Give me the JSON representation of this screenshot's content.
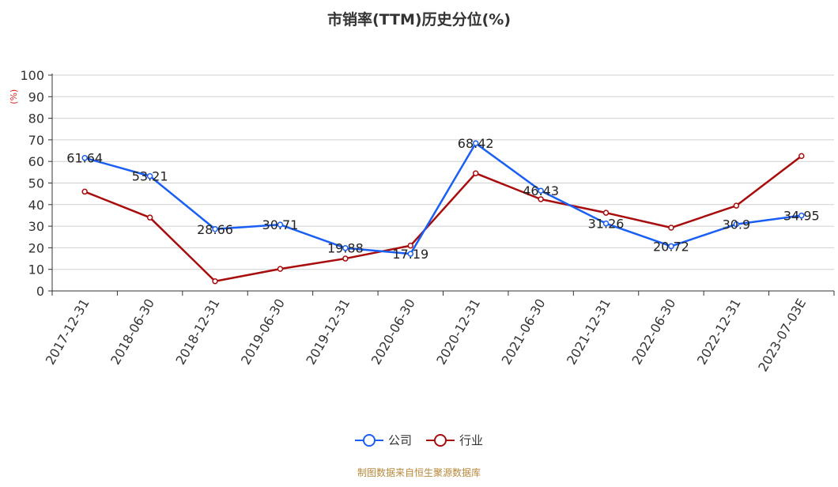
{
  "chart_data": {
    "type": "line",
    "title": "市销率(TTM)历史分位(%)",
    "ylabel": "(%)",
    "xlabel": "",
    "ylim": [
      0,
      100
    ],
    "yticks": [
      0,
      10,
      20,
      30,
      40,
      50,
      60,
      70,
      80,
      90,
      100
    ],
    "categories": [
      "2017-12-31",
      "2018-06-30",
      "2018-12-31",
      "2019-06-30",
      "2019-12-31",
      "2020-06-30",
      "2020-12-31",
      "2021-06-30",
      "2021-12-31",
      "2022-06-30",
      "2022-12-31",
      "2023-07-03E"
    ],
    "series": [
      {
        "name": "公司",
        "color": "#1a5ff5",
        "values": [
          61.64,
          53.21,
          28.66,
          30.71,
          19.88,
          17.19,
          68.42,
          46.43,
          31.26,
          20.72,
          30.9,
          34.95
        ],
        "labels": [
          "61.64",
          "53.21",
          "28.66",
          "30.71",
          "19.88",
          "17.19",
          "68.42",
          "46.43",
          "31.26",
          "20.72",
          "30.9",
          "34.95"
        ]
      },
      {
        "name": "行业",
        "color": "#a80c0c",
        "values": [
          46,
          34,
          4.5,
          10.2,
          15,
          21,
          54.5,
          42.5,
          36.2,
          29.3,
          39.5,
          62.5
        ]
      }
    ],
    "grid": true,
    "legend_position": "bottom"
  },
  "source_note": "制图数据来自恒生聚源数据库"
}
